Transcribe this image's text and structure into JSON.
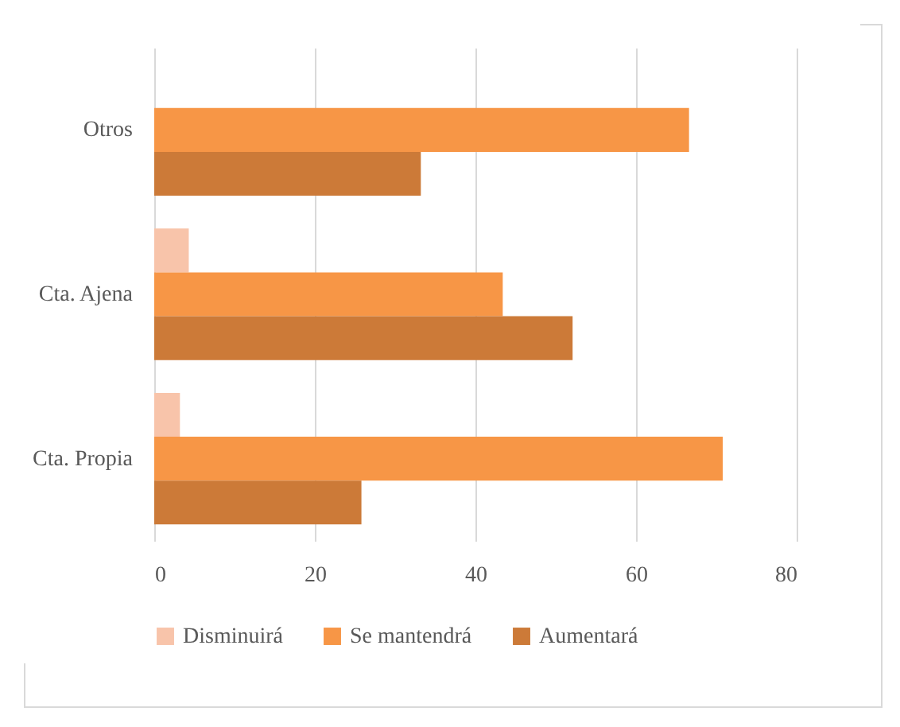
{
  "chart_data": {
    "type": "bar",
    "orientation": "horizontal",
    "categories": [
      "Otros",
      "Cta. Ajena",
      "Cta. Propia"
    ],
    "series": [
      {
        "name": "Disminuirá",
        "color": "#f8c4aa",
        "values": [
          0,
          4.3,
          3.2
        ]
      },
      {
        "name": "Se mantendrá",
        "color": "#f79646",
        "values": [
          66.6,
          43.4,
          70.8
        ]
      },
      {
        "name": "Aumentará",
        "color": "#cc7a38",
        "values": [
          33.2,
          52.1,
          25.8
        ]
      }
    ],
    "xlim": [
      0,
      80
    ],
    "xticks": [
      0,
      20,
      40,
      60,
      80
    ],
    "grid": "x",
    "legend": "bottom"
  }
}
